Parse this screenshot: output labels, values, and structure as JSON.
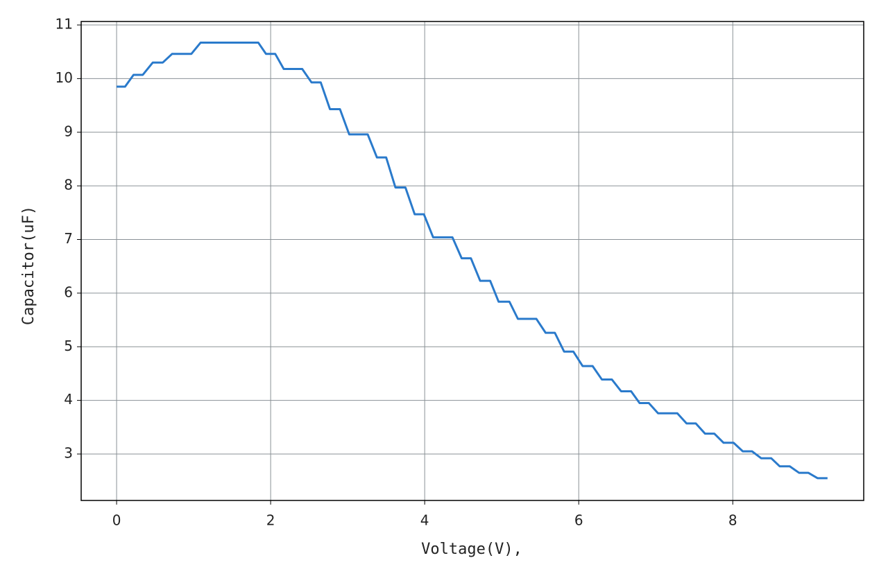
{
  "chart_data": {
    "type": "line",
    "xlabel": "Voltage(V),",
    "ylabel": "Capacitor(uF)",
    "xlim": [
      -0.46,
      9.7
    ],
    "ylim": [
      2.134,
      11.065
    ],
    "xticks": [
      0,
      2,
      4,
      6,
      8
    ],
    "yticks": [
      3,
      4,
      5,
      6,
      7,
      8,
      9,
      10,
      11
    ],
    "grid": true,
    "series": [
      {
        "color": "#2a7acb",
        "x": [
          0,
          0.11,
          0.22,
          0.34,
          0.47,
          0.6,
          0.72,
          0.97,
          1.09,
          1.84,
          1.94,
          2.06,
          2.17,
          2.41,
          2.53,
          2.65,
          2.77,
          2.9,
          3.02,
          3.26,
          3.38,
          3.5,
          3.62,
          3.75,
          3.87,
          3.99,
          4.11,
          4.36,
          4.48,
          4.6,
          4.72,
          4.85,
          4.96,
          5.1,
          5.21,
          5.45,
          5.57,
          5.69,
          5.81,
          5.93,
          6.05,
          6.18,
          6.3,
          6.43,
          6.55,
          6.68,
          6.79,
          6.91,
          7.03,
          7.28,
          7.4,
          7.52,
          7.64,
          7.76,
          7.88,
          8.01,
          8.13,
          8.25,
          8.37,
          8.5,
          8.61,
          8.74,
          8.86,
          8.98,
          9.1,
          9.23
        ],
        "values": [
          9.85,
          9.85,
          10.07,
          10.07,
          10.3,
          10.3,
          10.46,
          10.46,
          10.67,
          10.67,
          10.46,
          10.46,
          10.18,
          10.18,
          9.93,
          9.93,
          9.43,
          9.43,
          8.96,
          8.96,
          8.53,
          8.53,
          7.97,
          7.97,
          7.47,
          7.47,
          7.04,
          7.04,
          6.65,
          6.65,
          6.23,
          6.23,
          5.84,
          5.84,
          5.52,
          5.52,
          5.26,
          5.26,
          4.91,
          4.91,
          4.64,
          4.64,
          4.39,
          4.39,
          4.17,
          4.17,
          3.95,
          3.95,
          3.76,
          3.76,
          3.57,
          3.57,
          3.38,
          3.38,
          3.21,
          3.21,
          3.05,
          3.05,
          2.92,
          2.92,
          2.77,
          2.77,
          2.65,
          2.65,
          2.55,
          2.55
        ]
      }
    ]
  }
}
